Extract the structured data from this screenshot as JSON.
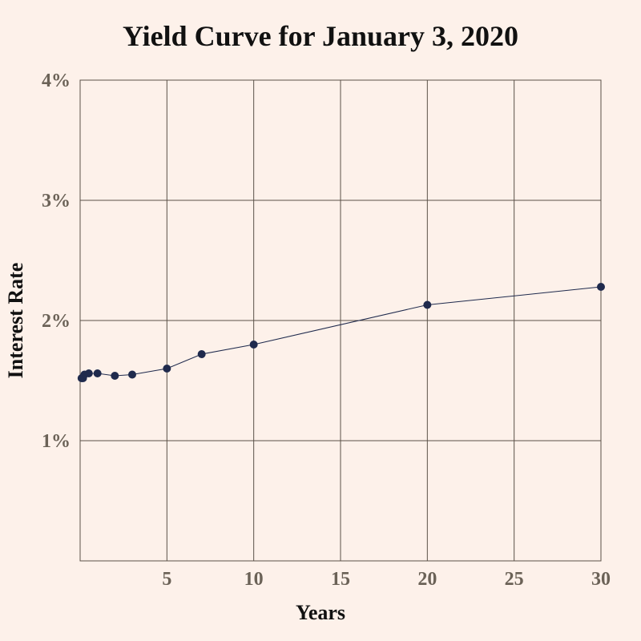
{
  "chart_data": {
    "type": "line",
    "title": "Yield Curve for January 3, 2020",
    "xlabel": "Years",
    "ylabel": "Interest Rate",
    "xlim": [
      0,
      30
    ],
    "ylim": [
      0,
      4
    ],
    "x_ticks": [
      5,
      10,
      15,
      20,
      25,
      30
    ],
    "x_tick_labels": [
      "5",
      "10",
      "15",
      "20",
      "25",
      "30"
    ],
    "y_ticks": [
      1,
      2,
      3,
      4
    ],
    "y_tick_labels": [
      "1%",
      "2%",
      "3%",
      "4%"
    ],
    "grid": true,
    "legend": "none",
    "series": [
      {
        "color": "#1f2a4d",
        "x": [
          0.0833,
          0.1667,
          0.25,
          0.5,
          1,
          2,
          3,
          5,
          7,
          10,
          20,
          30
        ],
        "y": [
          1.52,
          1.52,
          1.55,
          1.56,
          1.56,
          1.54,
          1.55,
          1.6,
          1.72,
          1.8,
          2.13,
          2.28
        ]
      }
    ]
  },
  "colors": {
    "background": "#fdf1ea",
    "grid": "#5a5148",
    "axis": "#5a5148",
    "tick_text": "#6b6257",
    "series": "#1f2a4d"
  }
}
